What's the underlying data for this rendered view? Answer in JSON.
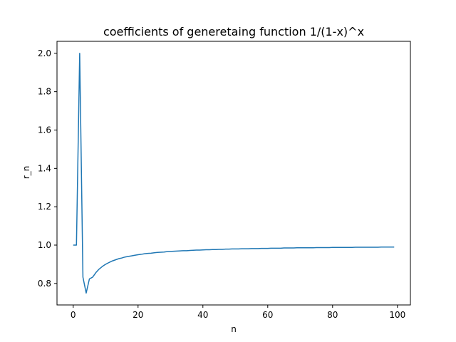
{
  "chart_data": {
    "type": "line",
    "title": "coefficients of generetaing function 1/(1-x)^x",
    "xlabel": "n",
    "ylabel": "r_n",
    "xlim": [
      -5,
      104
    ],
    "ylim": [
      0.688,
      2.0625
    ],
    "xticks": [
      0,
      20,
      40,
      60,
      80,
      100
    ],
    "yticks": [
      0.8,
      1.0,
      1.2,
      1.4,
      1.6,
      1.8,
      2.0
    ],
    "xtick_labels": [
      "0",
      "20",
      "40",
      "60",
      "80",
      "100"
    ],
    "ytick_labels": [
      "0.8",
      "1.0",
      "1.2",
      "1.4",
      "1.6",
      "1.8",
      "2.0"
    ],
    "grid": false,
    "series": [
      {
        "color": "#1f77b4",
        "x": [
          0,
          1,
          2,
          3,
          4,
          5,
          6,
          7,
          8,
          9,
          10,
          11,
          12,
          13,
          14,
          15,
          16,
          17,
          18,
          19,
          20,
          21,
          22,
          23,
          24,
          25,
          26,
          27,
          28,
          29,
          30,
          31,
          32,
          33,
          34,
          35,
          36,
          37,
          38,
          39,
          40,
          41,
          42,
          43,
          44,
          45,
          46,
          47,
          48,
          49,
          50,
          51,
          52,
          53,
          54,
          55,
          56,
          57,
          58,
          59,
          60,
          61,
          62,
          63,
          64,
          65,
          66,
          67,
          68,
          69,
          70,
          71,
          72,
          73,
          74,
          75,
          76,
          77,
          78,
          79,
          80,
          81,
          82,
          83,
          84,
          85,
          86,
          87,
          88,
          89,
          90,
          91,
          92,
          93,
          94,
          95,
          96,
          97,
          98,
          99
        ],
        "y": [
          1.0,
          1.0,
          2.0,
          0.833,
          0.75,
          0.824,
          0.833,
          0.857,
          0.875,
          0.889,
          0.9,
          0.909,
          0.917,
          0.923,
          0.929,
          0.933,
          0.938,
          0.941,
          0.944,
          0.947,
          0.95,
          0.952,
          0.955,
          0.957,
          0.958,
          0.96,
          0.962,
          0.963,
          0.964,
          0.966,
          0.967,
          0.968,
          0.969,
          0.97,
          0.971,
          0.971,
          0.972,
          0.973,
          0.974,
          0.974,
          0.975,
          0.976,
          0.976,
          0.977,
          0.977,
          0.978,
          0.978,
          0.979,
          0.979,
          0.98,
          0.98,
          0.98,
          0.981,
          0.981,
          0.981,
          0.982,
          0.982,
          0.982,
          0.983,
          0.983,
          0.983,
          0.984,
          0.984,
          0.984,
          0.984,
          0.985,
          0.985,
          0.985,
          0.985,
          0.986,
          0.986,
          0.986,
          0.986,
          0.986,
          0.986,
          0.987,
          0.987,
          0.987,
          0.987,
          0.987,
          0.988,
          0.988,
          0.988,
          0.988,
          0.988,
          0.988,
          0.988,
          0.989,
          0.989,
          0.989,
          0.989,
          0.989,
          0.989,
          0.989,
          0.989,
          0.99,
          0.99,
          0.99,
          0.99,
          0.99
        ]
      }
    ]
  }
}
